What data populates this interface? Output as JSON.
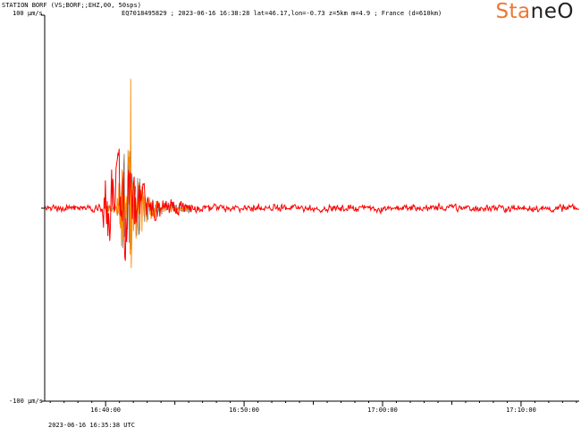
{
  "header": {
    "station": "STATION BORF (VS;BORF;;EHZ,00, 50sps)",
    "event": "EQ7018495829 ; 2023-06-16 16:38:28 lat=46.17,lon=-0.73 z=5km m=4.9 ; France (d=610km)",
    "start_time": "2023-06-16 16:35:38 UTC"
  },
  "logo": {
    "part1": "Sta",
    "part2": "neO",
    "color1": "#ee7733",
    "color2": "#222222"
  },
  "chart_data": {
    "type": "line",
    "title": "",
    "xlabel": "",
    "ylabel": "",
    "x_ticks": [
      "16:40:00",
      "16:50:00",
      "17:00:00",
      "17:10:00"
    ],
    "x_tick_times_min": [
      0,
      10,
      20,
      30
    ],
    "x_range_min": [
      -4.4,
      34.2
    ],
    "ylim": [
      -100,
      100
    ],
    "y_tick_labels": [
      "100 µm/s",
      "-100 µm/s"
    ],
    "grid": false,
    "series": [
      {
        "color": "#ff0000",
        "onset_min": 0.0,
        "peak": 24,
        "coda_decay_min": 1.5,
        "noise": 1.3
      },
      {
        "color": "#ff8800",
        "onset_min": 1.5,
        "peak": 67,
        "peak_min": -31,
        "decay_min": 0.9
      },
      {
        "color": "#777777",
        "onset_min": 1.5,
        "peak": 36,
        "decay_min": 1.0
      }
    ]
  }
}
